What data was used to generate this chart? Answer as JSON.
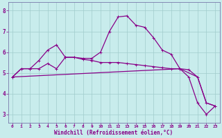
{
  "xlabel": "Windchill (Refroidissement éolien,°C)",
  "background_color": "#c8ecec",
  "grid_color": "#a0cccc",
  "line_color": "#880088",
  "spine_color": "#7777aa",
  "x_ticks": [
    0,
    1,
    2,
    3,
    4,
    5,
    6,
    7,
    8,
    9,
    10,
    11,
    12,
    13,
    14,
    15,
    16,
    17,
    18,
    19,
    20,
    21,
    22,
    23
  ],
  "y_ticks": [
    3,
    4,
    5,
    6,
    7,
    8
  ],
  "ylim": [
    2.6,
    8.4
  ],
  "xlim": [
    -0.5,
    23.5
  ],
  "line_peak_x": [
    0,
    1,
    2,
    3,
    4,
    5,
    6,
    7,
    8,
    9,
    10,
    11,
    12,
    13,
    14,
    15,
    16,
    17,
    18,
    19,
    20,
    21,
    22,
    23
  ],
  "line_peak_y": [
    4.8,
    5.2,
    5.2,
    5.6,
    6.1,
    6.35,
    5.75,
    5.75,
    5.7,
    5.7,
    6.0,
    7.0,
    7.7,
    7.75,
    7.3,
    7.2,
    6.7,
    6.1,
    5.9,
    5.2,
    4.8,
    3.55,
    3.0,
    3.4
  ],
  "line_flat_x": [
    0,
    1,
    2,
    3,
    4,
    5,
    6,
    7,
    8,
    9,
    10,
    11,
    12,
    13,
    14,
    15,
    16,
    17,
    18,
    19,
    20,
    21,
    22,
    23
  ],
  "line_flat_y": [
    4.8,
    5.2,
    5.2,
    5.2,
    5.45,
    5.2,
    5.75,
    5.75,
    5.65,
    5.6,
    5.5,
    5.5,
    5.5,
    5.45,
    5.4,
    5.35,
    5.3,
    5.25,
    5.2,
    5.2,
    5.15,
    4.8,
    3.55,
    3.4
  ],
  "line_diag_x": [
    0,
    19,
    21,
    22,
    23
  ],
  "line_diag_y": [
    4.8,
    5.2,
    4.8,
    3.55,
    3.4
  ]
}
